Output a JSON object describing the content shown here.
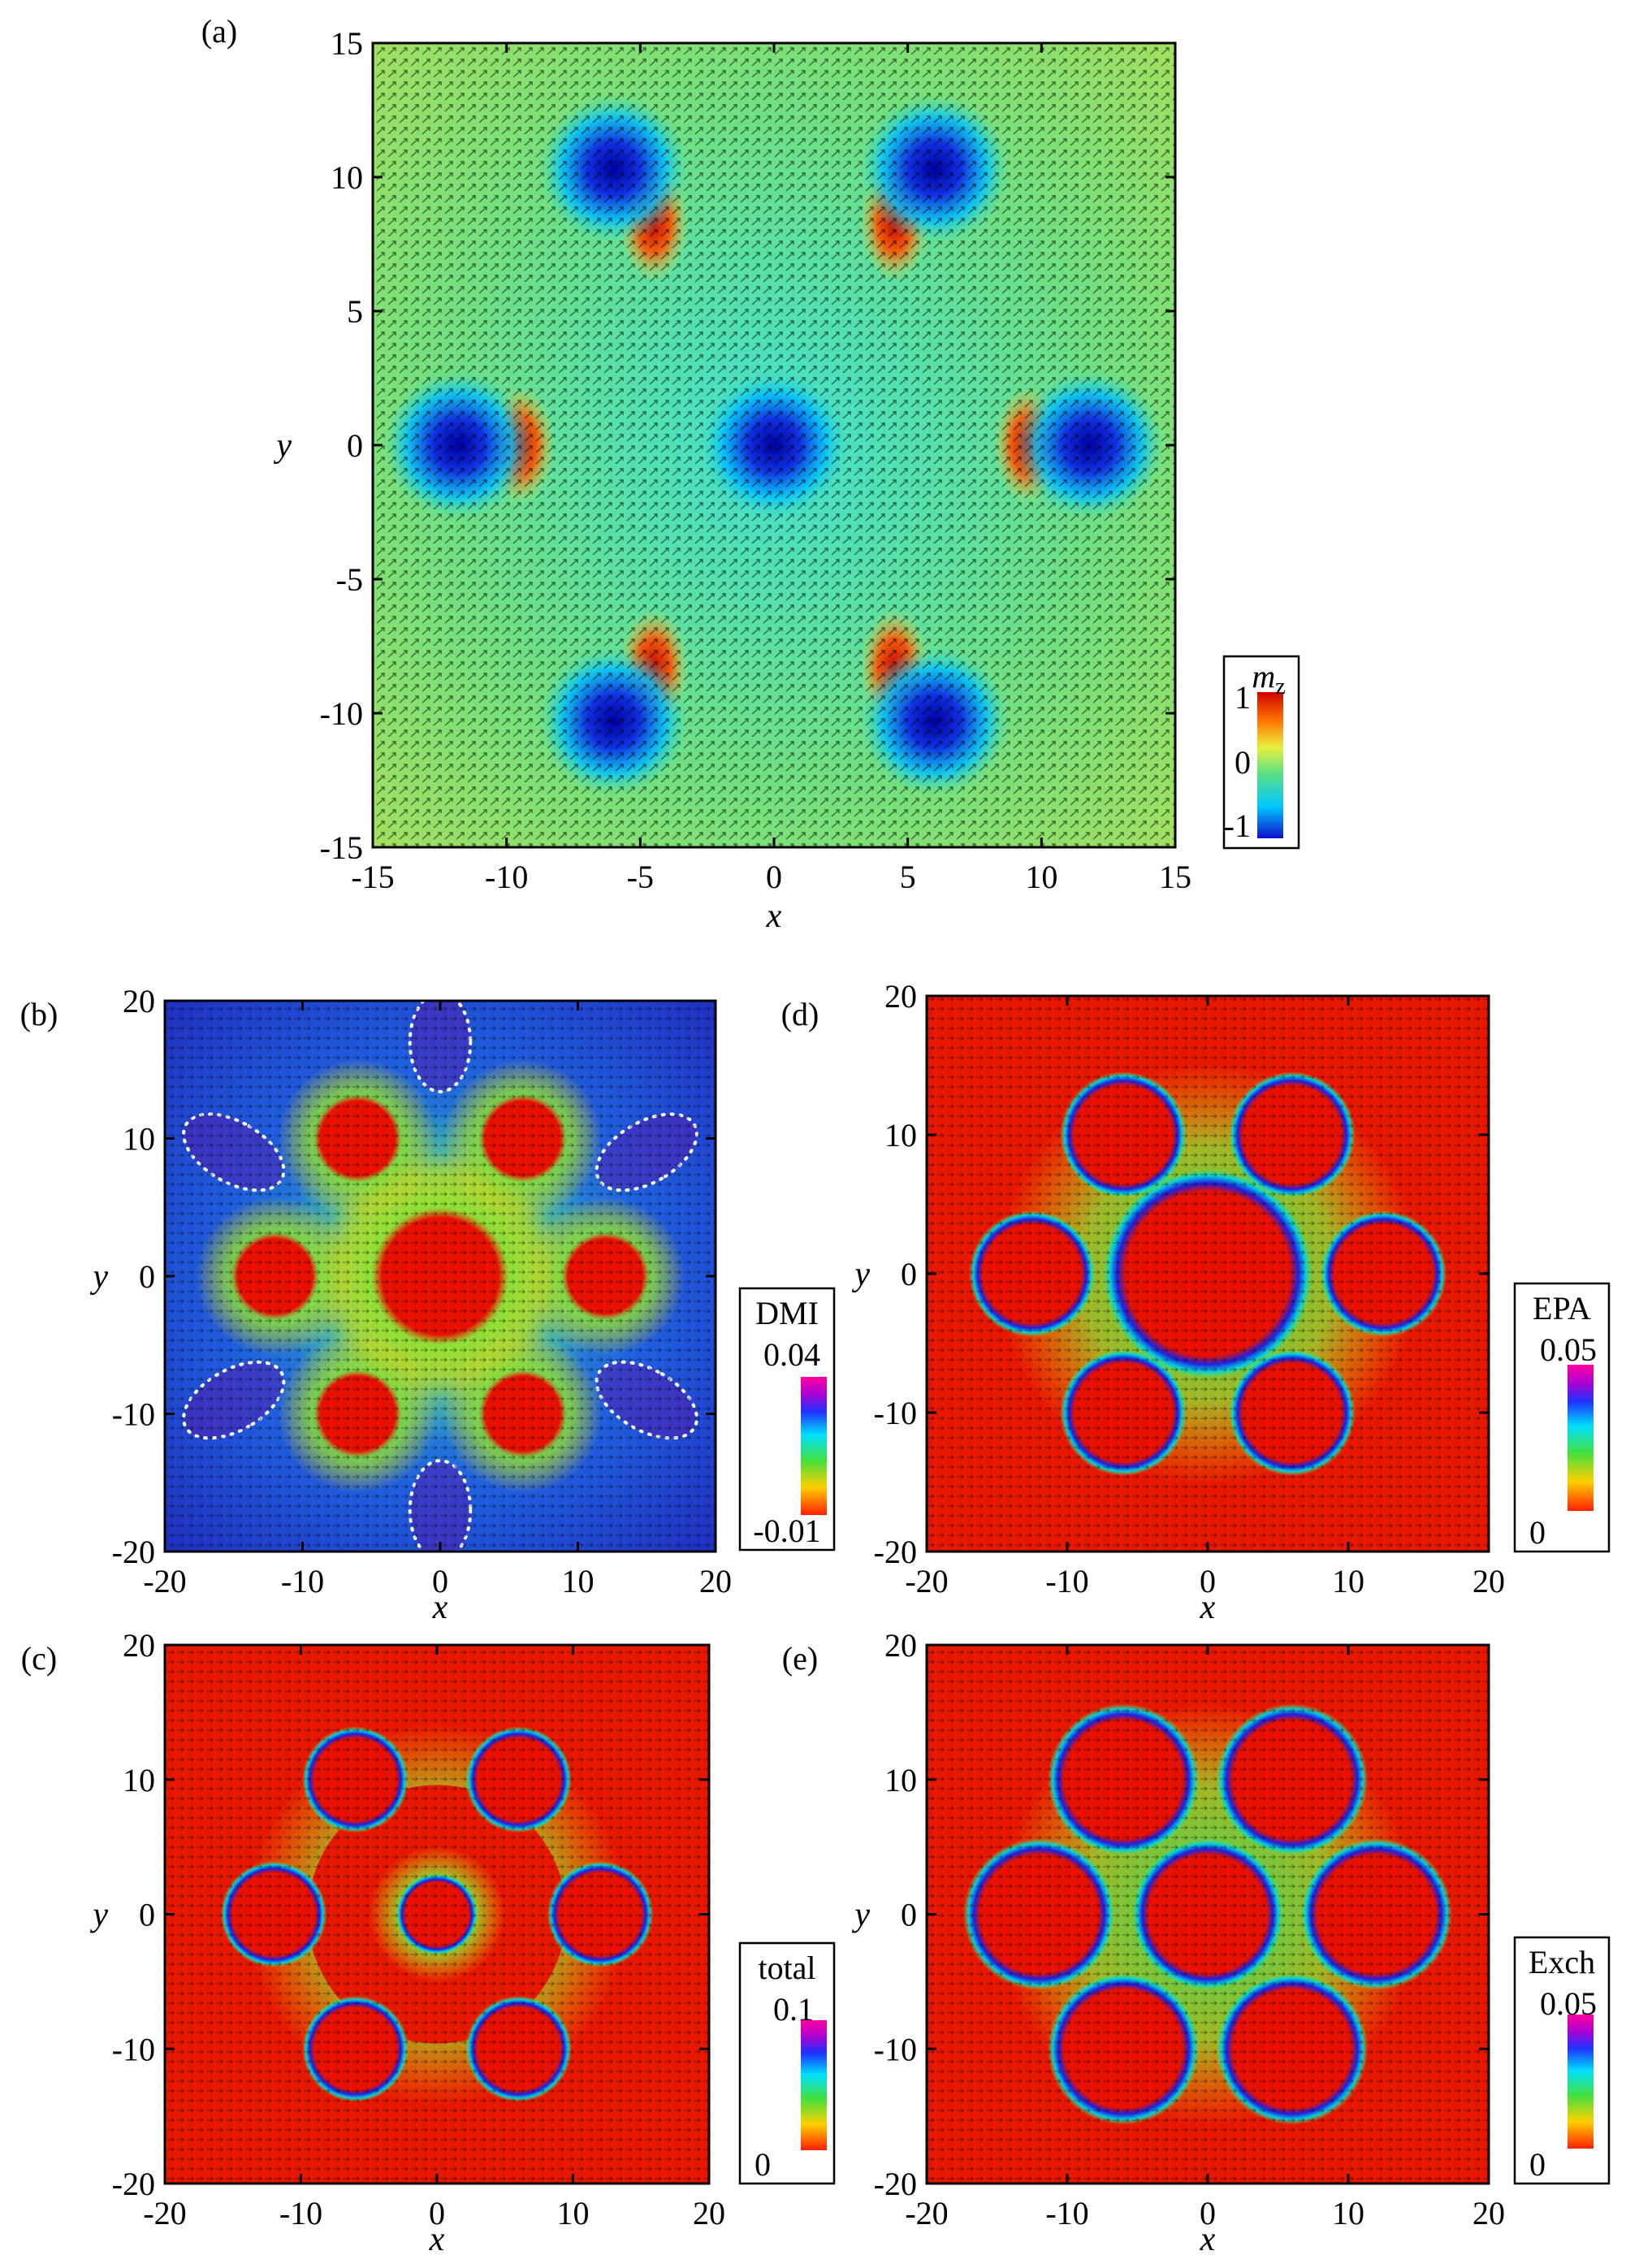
{
  "chart_data": [
    {
      "type": "heatmap",
      "panel_label": "(a)",
      "xlabel": "x",
      "ylabel": "y",
      "xlim": [
        -15,
        15
      ],
      "ylim": [
        -15,
        15
      ],
      "xticks": [
        -15,
        -10,
        -5,
        0,
        5,
        10,
        15
      ],
      "yticks": [
        -15,
        -10,
        -5,
        0,
        5,
        10,
        15
      ],
      "colorbar": {
        "title": "m",
        "title_sub": "z",
        "ticks": [
          "1",
          "0",
          "-1"
        ],
        "range": [
          -1,
          1
        ]
      },
      "features": [
        {
          "x": 0,
          "y": 0,
          "kind": "core"
        },
        {
          "x": -6,
          "y": 10.3,
          "kind": "core"
        },
        {
          "x": 6,
          "y": 10.3,
          "kind": "core"
        },
        {
          "x": -11.8,
          "y": 0,
          "kind": "core"
        },
        {
          "x": 11.8,
          "y": 0,
          "kind": "core"
        },
        {
          "x": -6,
          "y": -10.3,
          "kind": "core"
        },
        {
          "x": 6,
          "y": -10.3,
          "kind": "core"
        },
        {
          "x": -9.5,
          "y": 0,
          "kind": "hot"
        },
        {
          "x": 9.5,
          "y": 0,
          "kind": "hot"
        },
        {
          "x": -4.5,
          "y": 8.3,
          "kind": "hot"
        },
        {
          "x": 4.5,
          "y": 8.3,
          "kind": "hot"
        },
        {
          "x": -4.5,
          "y": -8.3,
          "kind": "hot"
        },
        {
          "x": 4.5,
          "y": -8.3,
          "kind": "hot"
        }
      ]
    },
    {
      "type": "heatmap",
      "panel_label": "(b)",
      "xlabel": "x",
      "ylabel": "y",
      "xlim": [
        -20,
        20
      ],
      "ylim": [
        -20,
        20
      ],
      "xticks": [
        -20,
        -10,
        0,
        10,
        20
      ],
      "yticks": [
        -20,
        -10,
        0,
        10,
        20
      ],
      "colorbar": {
        "title": "DMI",
        "ticks": [
          "0.04",
          "-0.01"
        ],
        "range": [
          -0.01,
          0.04
        ]
      },
      "features": [
        {
          "x": 0,
          "y": 0,
          "r": 5
        },
        {
          "x": -6,
          "y": 10,
          "r": 3.2
        },
        {
          "x": 6,
          "y": 10,
          "r": 3.2
        },
        {
          "x": -12,
          "y": 0,
          "r": 3.2
        },
        {
          "x": 12,
          "y": 0,
          "r": 3.2
        },
        {
          "x": -6,
          "y": -10,
          "r": 3.2
        },
        {
          "x": 6,
          "y": -10,
          "r": 3.2
        }
      ]
    },
    {
      "type": "heatmap",
      "panel_label": "(c)",
      "xlabel": "x",
      "ylabel": "y",
      "xlim": [
        -20,
        20
      ],
      "ylim": [
        -20,
        20
      ],
      "xticks": [
        -20,
        -10,
        0,
        10,
        20
      ],
      "yticks": [
        -20,
        -10,
        0,
        10,
        20
      ],
      "colorbar": {
        "title": "total",
        "ticks": [
          "0.1",
          "0"
        ],
        "range": [
          0,
          0.1
        ]
      },
      "features": [
        {
          "x": 0,
          "y": 0,
          "r": 2
        },
        {
          "x": -6,
          "y": 10,
          "r": 2.6
        },
        {
          "x": 6,
          "y": 10,
          "r": 2.6
        },
        {
          "x": -12,
          "y": 0,
          "r": 2.6
        },
        {
          "x": 12,
          "y": 0,
          "r": 2.6
        },
        {
          "x": -6,
          "y": -10,
          "r": 2.6
        },
        {
          "x": 6,
          "y": -10,
          "r": 2.6
        }
      ]
    },
    {
      "type": "heatmap",
      "panel_label": "(d)",
      "xlabel": "x",
      "ylabel": "y",
      "xlim": [
        -20,
        20
      ],
      "ylim": [
        -20,
        20
      ],
      "xticks": [
        -20,
        -10,
        0,
        10,
        20
      ],
      "yticks": [
        -20,
        -10,
        0,
        10,
        20
      ],
      "colorbar": {
        "title": "EPA",
        "ticks": [
          "0.05",
          "0"
        ],
        "range": [
          0,
          0.05
        ]
      },
      "features": [
        {
          "x": 0,
          "y": 0,
          "r": 5
        },
        {
          "x": -6,
          "y": 10,
          "r": 3
        },
        {
          "x": 6,
          "y": 10,
          "r": 3
        },
        {
          "x": -12.5,
          "y": 0,
          "r": 3
        },
        {
          "x": 12.5,
          "y": 0,
          "r": 3
        },
        {
          "x": -6,
          "y": -10,
          "r": 3
        },
        {
          "x": 6,
          "y": -10,
          "r": 3
        }
      ]
    },
    {
      "type": "heatmap",
      "panel_label": "(e)",
      "xlabel": "x",
      "ylabel": "y",
      "xlim": [
        -20,
        20
      ],
      "ylim": [
        -20,
        20
      ],
      "xticks": [
        -20,
        -10,
        0,
        10,
        20
      ],
      "yticks": [
        -20,
        -10,
        0,
        10,
        20
      ],
      "colorbar": {
        "title": "Exch",
        "ticks": [
          "0.05",
          "0"
        ],
        "range": [
          0,
          0.05
        ]
      },
      "features": [
        {
          "x": 0,
          "y": 0,
          "r": 3.6
        },
        {
          "x": -6,
          "y": 10,
          "r": 3.6
        },
        {
          "x": 6,
          "y": 10,
          "r": 3.6
        },
        {
          "x": -12,
          "y": 0,
          "r": 3.6
        },
        {
          "x": 12,
          "y": 0,
          "r": 3.6
        },
        {
          "x": -6,
          "y": -10,
          "r": 3.6
        },
        {
          "x": 6,
          "y": -10,
          "r": 3.6
        }
      ]
    }
  ]
}
